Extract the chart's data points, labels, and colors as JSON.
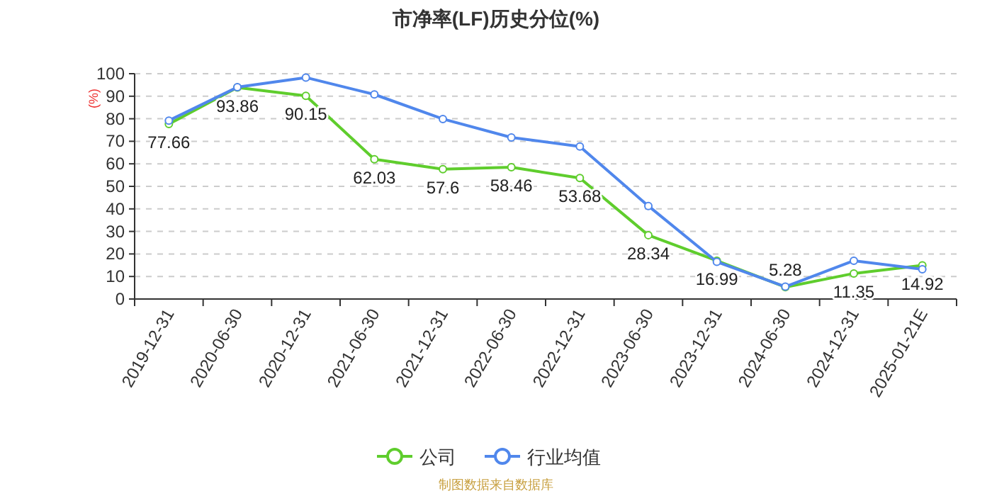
{
  "chart_data": {
    "type": "line",
    "title": "市净率(LF)历史分位(%)",
    "ylabel": "(%)",
    "categories": [
      "2019-12-31",
      "2020-06-30",
      "2020-12-31",
      "2021-06-30",
      "2021-12-31",
      "2022-06-30",
      "2022-12-31",
      "2023-06-30",
      "2023-12-31",
      "2024-06-30",
      "2024-12-31",
      "2025-01-21E"
    ],
    "series": [
      {
        "name": "公司",
        "color": "#5fcd2d",
        "values": [
          77.66,
          93.86,
          90.15,
          62.03,
          57.6,
          58.46,
          53.68,
          28.34,
          16.99,
          5.28,
          11.35,
          14.92
        ],
        "value_labels": [
          "77.66",
          "93.86",
          "90.15",
          "62.03",
          "57.6",
          "58.46",
          "53.68",
          "28.34",
          "16.99",
          "5.28",
          "11.35",
          "14.92"
        ]
      },
      {
        "name": "行业均值",
        "color": "#5087ec",
        "values": [
          79.2,
          94,
          98.3,
          90.8,
          79.9,
          71.7,
          67.7,
          41.3,
          16.5,
          5.5,
          17,
          13.2
        ]
      }
    ],
    "ylim": [
      0,
      100
    ],
    "yticks": [
      0,
      10,
      20,
      30,
      40,
      50,
      60,
      70,
      80,
      90,
      100
    ],
    "grid": "y",
    "legend": "bottom",
    "marker": "circle",
    "line_style": "solid",
    "annotations": [
      "制图数据来自数据库"
    ]
  }
}
